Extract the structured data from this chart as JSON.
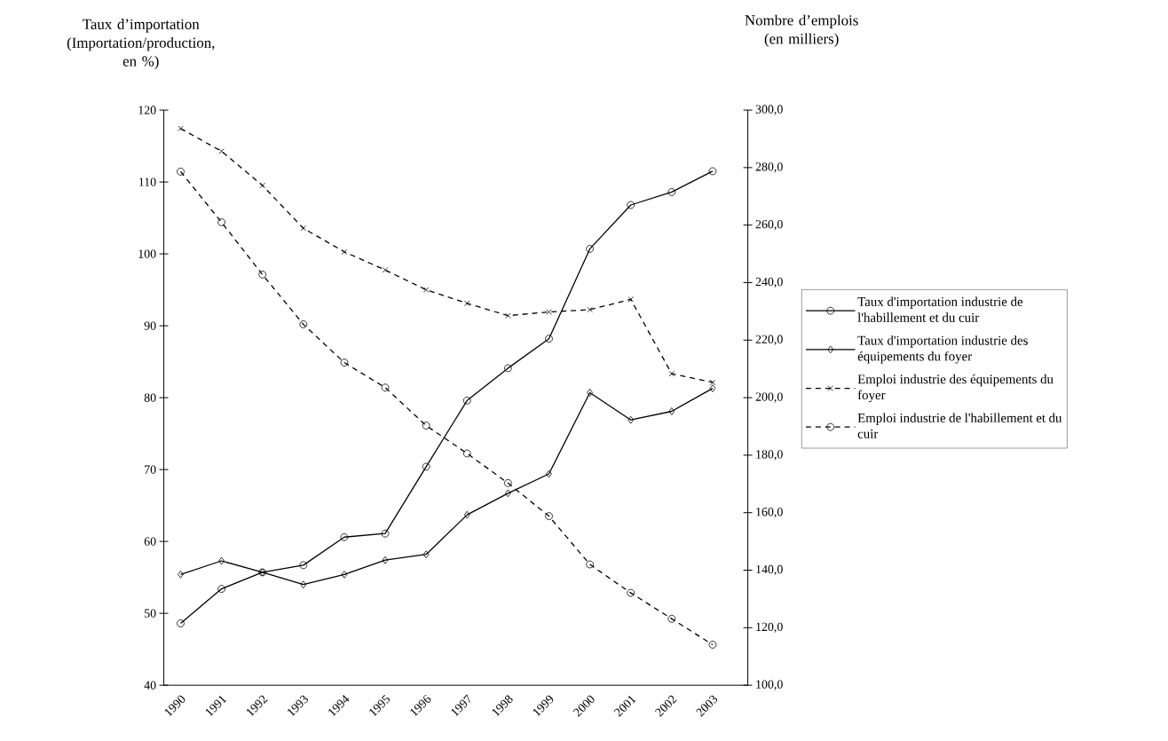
{
  "chart_data": {
    "type": "line",
    "ylabel": "Taux d’importation (Importation/production, en %)",
    "y2label": "Nombre d’emplois (en milliers)",
    "categories": [
      "1990",
      "1991",
      "1992",
      "1993",
      "1994",
      "1995",
      "1996",
      "1997",
      "1998",
      "1999",
      "2000",
      "2001",
      "2002",
      "2003"
    ],
    "ylim": [
      40,
      120
    ],
    "yticks": [
      40,
      50,
      60,
      70,
      80,
      90,
      100,
      110,
      120
    ],
    "y2lim": [
      100,
      300
    ],
    "y2ticks": [
      {
        "value": 100,
        "label": "100,0"
      },
      {
        "value": 120,
        "label": "120,0"
      },
      {
        "value": 140,
        "label": "140,0"
      },
      {
        "value": 160,
        "label": "160,0"
      },
      {
        "value": 180,
        "label": "180,0"
      },
      {
        "value": 200,
        "label": "200,0"
      },
      {
        "value": 220,
        "label": "220,0"
      },
      {
        "value": 240,
        "label": "240,0"
      },
      {
        "value": 260,
        "label": "260,0"
      },
      {
        "value": 280,
        "label": "280,0"
      },
      {
        "value": 300,
        "label": "300,0"
      }
    ],
    "legend": "right",
    "series": [
      {
        "name": "Taux d'importation industrie de l'habillement et du cuir",
        "color": "#000000",
        "marker": "circle",
        "line_style": "solid",
        "values": [
          48.6,
          53.4,
          55.7,
          56.7,
          60.6,
          61.1,
          70.4,
          79.6,
          84.1,
          88.2,
          100.7,
          106.8,
          108.6,
          111.5
        ]
      },
      {
        "name": "Taux d'importation industrie des équipements du foyer",
        "color": "#000000",
        "marker": "diamond",
        "line_style": "solid",
        "values": [
          55.4,
          57.3,
          55.7,
          54.0,
          55.4,
          57.4,
          58.2,
          63.7,
          66.7,
          69.4,
          80.7,
          76.9,
          78.1,
          81.3
        ]
      },
      {
        "name": "Emploi industrie des équipements du foyer",
        "color": "#000000",
        "marker": "cross",
        "line_style": "dashed",
        "axis": "y2",
        "values": [
          293.6,
          285.7,
          273.8,
          258.9,
          250.7,
          244.4,
          237.5,
          232.8,
          228.5,
          229.8,
          230.6,
          234.2,
          208.3,
          205.3
        ]
      },
      {
        "name": "Emploi industrie de l'habillement et du cuir",
        "color": "#000000",
        "marker": "circle",
        "line_style": "dashed",
        "axis": "y2",
        "values": [
          278.6,
          261.0,
          242.8,
          225.5,
          212.2,
          203.5,
          190.3,
          180.6,
          170.3,
          158.8,
          142.0,
          132.1,
          123.1,
          114.1
        ]
      }
    ]
  }
}
